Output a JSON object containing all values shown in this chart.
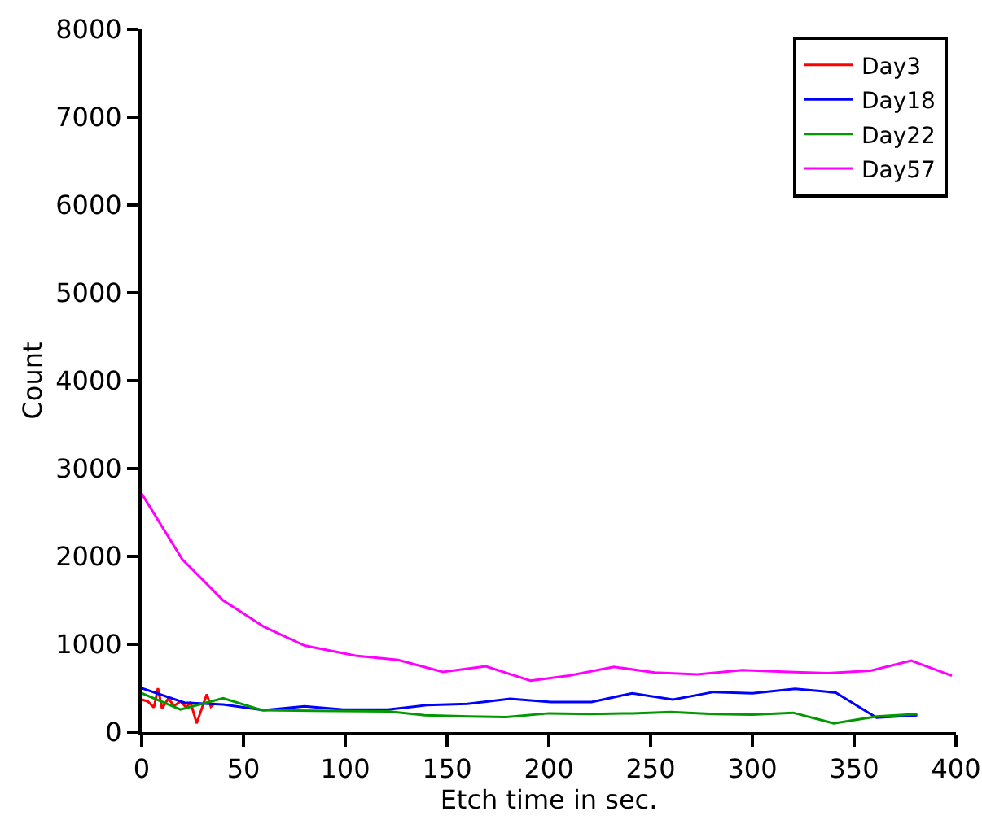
{
  "chart_data": {
    "type": "line",
    "xlabel": "Etch time in sec.",
    "ylabel": "Count",
    "xlim": [
      0,
      400
    ],
    "xticks": [
      0,
      50,
      100,
      150,
      200,
      250,
      300,
      350,
      400
    ],
    "ylim": [
      0,
      8000
    ],
    "yticks": [
      0,
      1000,
      2000,
      3000,
      4000,
      5000,
      6000,
      7000,
      8000
    ],
    "grid": false,
    "legend": "top right",
    "marker": "none",
    "line_style": "solid",
    "series": [
      {
        "name": "Day3",
        "color": "#ff0000",
        "x": [
          0,
          3,
          6,
          8,
          10,
          13,
          16,
          19,
          22,
          24,
          27,
          30,
          32,
          34,
          36
        ],
        "values": [
          370,
          350,
          280,
          500,
          270,
          380,
          300,
          350,
          280,
          340,
          100,
          300,
          430,
          290,
          330
        ]
      },
      {
        "name": "Day18",
        "color": "#0000ff",
        "x": [
          0,
          21,
          40,
          60,
          80,
          99,
          121,
          140,
          160,
          181,
          201,
          221,
          241,
          261,
          281,
          300,
          321,
          341,
          361,
          381
        ],
        "values": [
          500,
          336,
          314,
          250,
          293,
          257,
          257,
          307,
          321,
          379,
          343,
          343,
          443,
          371,
          457,
          443,
          493,
          450,
          164,
          193
        ]
      },
      {
        "name": "Day22",
        "color": "#009900",
        "x": [
          0,
          19,
          40,
          59,
          84,
          121,
          139,
          161,
          179,
          200,
          221,
          241,
          260,
          281,
          300,
          320,
          340,
          361,
          381
        ],
        "values": [
          443,
          257,
          386,
          250,
          243,
          236,
          193,
          179,
          171,
          214,
          207,
          214,
          229,
          207,
          200,
          221,
          100,
          179,
          207
        ]
      },
      {
        "name": "Day57",
        "color": "#ff00ff",
        "x": [
          0,
          20,
          40,
          60,
          80,
          105,
          126,
          148,
          169,
          191,
          210,
          232,
          252,
          273,
          295,
          318,
          337,
          358,
          378,
          398
        ],
        "values": [
          2714,
          1964,
          1500,
          1200,
          986,
          871,
          821,
          686,
          750,
          586,
          643,
          743,
          679,
          657,
          707,
          686,
          671,
          700,
          814,
          643
        ]
      }
    ]
  }
}
